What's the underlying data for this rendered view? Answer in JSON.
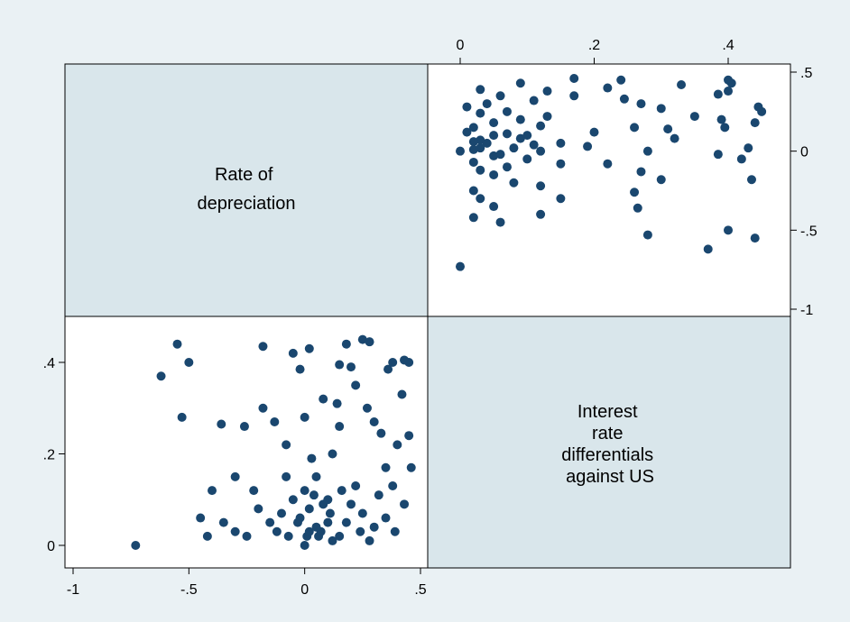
{
  "chart_data": {
    "type": "scatter-matrix",
    "variables": [
      {
        "name": "Rate of depreciation",
        "label_lines": [
          "Rate of",
          "depreciation"
        ]
      },
      {
        "name": "Interest rate differentials against US",
        "label_lines": [
          "Interest",
          "rate",
          "differentials",
          "against US"
        ]
      }
    ],
    "axes": {
      "depreciation": {
        "range": [
          -1,
          0.5
        ],
        "ticks": [
          -1,
          -0.5,
          0,
          0.5
        ],
        "tick_labels": [
          "-1",
          "-.5",
          "0",
          ".5"
        ]
      },
      "interest": {
        "range": [
          0,
          0.47
        ],
        "ticks": [
          0,
          0.2,
          0.4
        ],
        "tick_labels": [
          "0",
          ".2",
          ".4"
        ]
      }
    },
    "colors": {
      "marker": "#1a476f",
      "diagonal_fill": "#d9e6eb",
      "background": "#eaf1f4"
    },
    "grid": false,
    "points": [
      [
        0.45,
        0.4
      ],
      [
        0.43,
        0.405
      ],
      [
        0.36,
        0.385
      ],
      [
        0.38,
        0.4
      ],
      [
        0.25,
        0.45
      ],
      [
        0.28,
        0.445
      ],
      [
        0.18,
        0.44
      ],
      [
        0.15,
        0.395
      ],
      [
        0.2,
        0.39
      ],
      [
        0.02,
        0.43
      ],
      [
        -0.02,
        0.385
      ],
      [
        -0.05,
        0.42
      ],
      [
        -0.18,
        0.435
      ],
      [
        -0.55,
        0.44
      ],
      [
        -0.5,
        0.4
      ],
      [
        -0.62,
        0.37
      ],
      [
        -0.53,
        0.28
      ],
      [
        -0.36,
        0.265
      ],
      [
        -0.18,
        0.3
      ],
      [
        -0.26,
        0.26
      ],
      [
        0.08,
        0.32
      ],
      [
        0.0,
        0.28
      ],
      [
        -0.13,
        0.27
      ],
      [
        0.3,
        0.27
      ],
      [
        0.33,
        0.245
      ],
      [
        0.4,
        0.22
      ],
      [
        0.45,
        0.24
      ],
      [
        0.46,
        0.17
      ],
      [
        0.35,
        0.17
      ],
      [
        -0.73,
        0.0
      ],
      [
        -0.42,
        0.02
      ],
      [
        -0.3,
        0.03
      ],
      [
        -0.12,
        0.03
      ],
      [
        0.07,
        0.03
      ],
      [
        0.1,
        0.1
      ],
      [
        0.12,
        0.2
      ],
      [
        -0.08,
        0.15
      ],
      [
        0.02,
        0.08
      ],
      [
        0.05,
        0.04
      ],
      [
        0.18,
        0.05
      ],
      [
        0.25,
        0.07
      ],
      [
        0.22,
        0.13
      ],
      [
        0.01,
        0.02
      ],
      [
        -0.03,
        0.05
      ],
      [
        0.0,
        0.12
      ],
      [
        0.03,
        0.19
      ],
      [
        -0.2,
        0.08
      ],
      [
        -0.4,
        0.12
      ],
      [
        -0.3,
        0.15
      ],
      [
        0.28,
        0.01
      ],
      [
        0.39,
        0.03
      ],
      [
        0.43,
        0.09
      ],
      [
        0.32,
        0.11
      ],
      [
        0.15,
        0.02
      ],
      [
        -0.1,
        0.07
      ],
      [
        -0.05,
        0.1
      ],
      [
        0.2,
        0.09
      ],
      [
        0.12,
        0.01
      ],
      [
        0.27,
        0.3
      ],
      [
        0.15,
        0.26
      ],
      [
        -0.08,
        0.22
      ],
      [
        0.05,
        0.15
      ],
      [
        0.35,
        0.06
      ],
      [
        -0.15,
        0.05
      ],
      [
        -0.22,
        0.12
      ],
      [
        0.1,
        0.05
      ],
      [
        0.08,
        0.09
      ],
      [
        0.0,
        0.0
      ],
      [
        0.02,
        0.03
      ],
      [
        -0.02,
        0.06
      ],
      [
        0.04,
        0.11
      ],
      [
        0.06,
        0.02
      ],
      [
        0.11,
        0.07
      ],
      [
        -0.07,
        0.02
      ],
      [
        0.16,
        0.12
      ],
      [
        0.24,
        0.03
      ],
      [
        -0.25,
        0.02
      ],
      [
        -0.35,
        0.05
      ],
      [
        0.3,
        0.04
      ],
      [
        0.38,
        0.13
      ],
      [
        -0.45,
        0.06
      ],
      [
        0.42,
        0.33
      ],
      [
        0.22,
        0.35
      ],
      [
        0.14,
        0.31
      ]
    ]
  }
}
